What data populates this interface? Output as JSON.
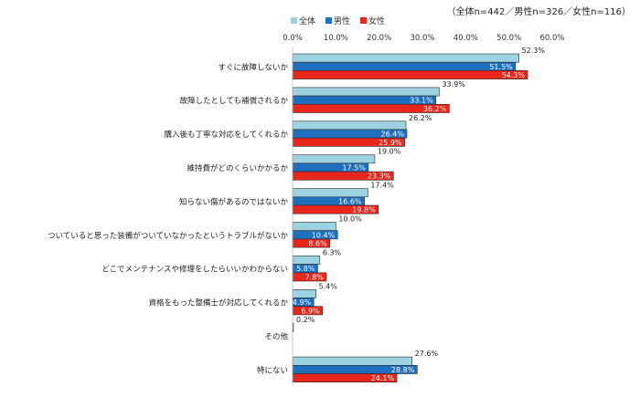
{
  "note": "（全体n=442／男性n=326／女性n=116）",
  "chart_data": {
    "type": "bar",
    "orientation": "horizontal",
    "categories": [
      "すぐに故障しないか",
      "故障したとしても補償されるか",
      "購入後も丁寧な対応をしてくれるか",
      "維持費がどのくらいかかるか",
      "知らない傷があるのではないか",
      "ついていると思った装備がついていなかったというトラブルがないか",
      "どこでメンテナンスや修理をしたらいいかわからない",
      "資格をもった整備士が対応してくれるか",
      "その他",
      "特にない"
    ],
    "series": [
      {
        "name": "全体",
        "color": "#9dd3e0",
        "values": [
          52.3,
          33.9,
          26.2,
          19.0,
          17.4,
          10.0,
          6.3,
          5.4,
          0.2,
          27.6
        ]
      },
      {
        "name": "男性",
        "color": "#1f6fbf",
        "values": [
          51.5,
          33.1,
          26.4,
          17.5,
          16.6,
          10.4,
          5.8,
          4.9,
          null,
          28.8
        ]
      },
      {
        "name": "女性",
        "color": "#e8261c",
        "values": [
          54.3,
          36.2,
          25.9,
          23.3,
          19.8,
          8.6,
          7.8,
          6.9,
          null,
          24.1
        ]
      }
    ],
    "value_labels": [
      [
        "52.3%",
        "51.5%",
        "54.3%"
      ],
      [
        "33.9%",
        "33.1%",
        "36.2%"
      ],
      [
        "26.2%",
        "26.4%",
        "25.9%"
      ],
      [
        "19.0%",
        "17.5%",
        "23.3%"
      ],
      [
        "17.4%",
        "16.6%",
        "19.8%"
      ],
      [
        "10.0%",
        "10.4%",
        "8.6%"
      ],
      [
        "6.3%",
        "5.8%",
        "7.8%"
      ],
      [
        "5.4%",
        "4.9%",
        "6.9%"
      ],
      [
        "0.2%",
        "",
        ""
      ],
      [
        "27.6%",
        "28.8%",
        "24.1%"
      ]
    ],
    "xlim": [
      0,
      60
    ],
    "xticks": [
      0,
      10,
      20,
      30,
      40,
      50,
      60
    ],
    "xtick_labels": [
      "0.0%",
      "10.0%",
      "20.0%",
      "30.0%",
      "40.0%",
      "50.0%",
      "60.0%"
    ],
    "legend_position": "top-center",
    "grid": false
  }
}
